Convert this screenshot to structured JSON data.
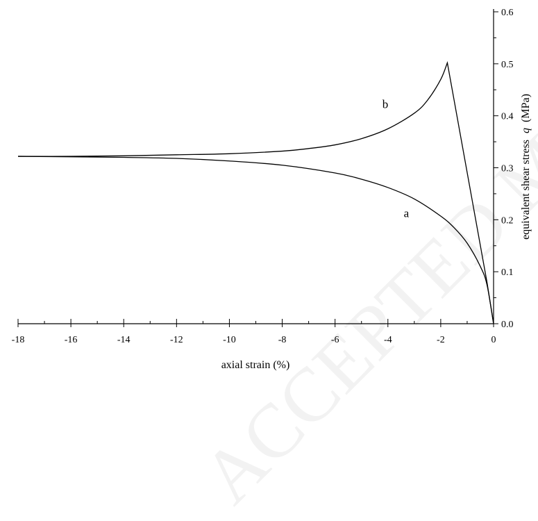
{
  "chart_data": {
    "type": "line",
    "title": "",
    "xlabel": "axial strain (%)",
    "ylabel_plain": "equivalent shear stress",
    "ylabel_symbol": "q",
    "ylabel_unit": "(MPa)",
    "xlim": [
      -18,
      0
    ],
    "ylim": [
      0,
      0.6
    ],
    "x_major_ticks": [
      -18,
      -16,
      -14,
      -12,
      -10,
      -8,
      -6,
      -4,
      -2,
      0
    ],
    "x_minor_ticks": [
      -17,
      -15,
      -13,
      -11,
      -9,
      -7,
      -5,
      -3,
      -1
    ],
    "y_major_ticks": [
      "0.0",
      "0.1",
      "0.2",
      "0.3",
      "0.4",
      "0.5",
      "0.6"
    ],
    "y_axis_side": "right",
    "grid": false,
    "series": [
      {
        "name": "a",
        "x": [
          0,
          -0.25,
          -0.5,
          -1,
          -1.5,
          -2,
          -3,
          -4,
          -5,
          -6,
          -8,
          -10,
          -12,
          -14,
          -16,
          -18
        ],
        "y": [
          0.0,
          0.075,
          0.11,
          0.155,
          0.185,
          0.207,
          0.24,
          0.262,
          0.278,
          0.29,
          0.305,
          0.313,
          0.318,
          0.32,
          0.321,
          0.322
        ]
      },
      {
        "name": "b",
        "x": [
          0,
          -0.25,
          -1.75,
          -2,
          -2.5,
          -3,
          -4,
          -5,
          -6,
          -7,
          -8,
          -10,
          -12,
          -14,
          -16,
          -18
        ],
        "y": [
          0.0,
          0.08,
          0.502,
          0.47,
          0.43,
          0.405,
          0.375,
          0.356,
          0.344,
          0.337,
          0.332,
          0.327,
          0.325,
          0.323,
          0.322,
          0.322
        ]
      }
    ],
    "annotations": [
      {
        "text": "a",
        "x": -3.3,
        "y": 0.205
      },
      {
        "text": "b",
        "x": -4.1,
        "y": 0.415
      }
    ]
  },
  "watermark": "ACCEPTED MANUSCRIPT"
}
